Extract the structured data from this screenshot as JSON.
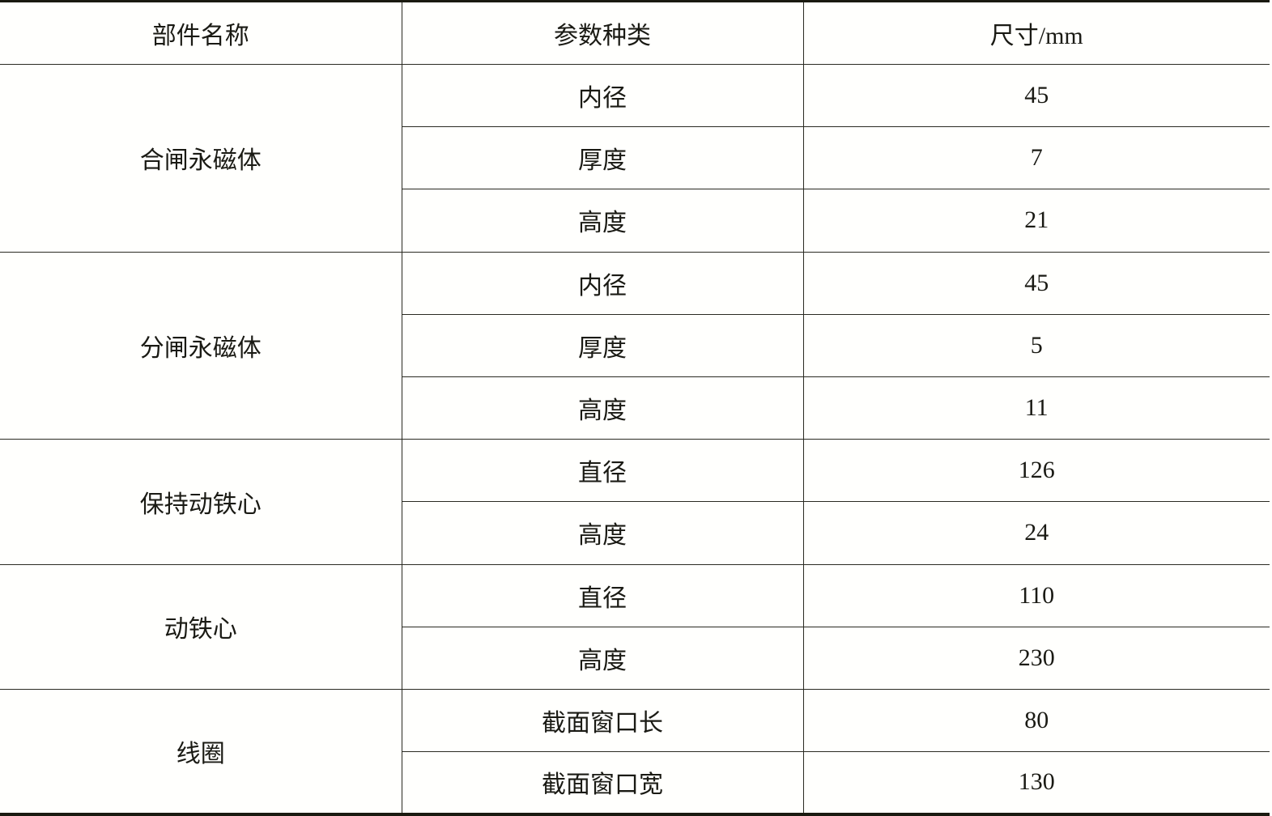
{
  "table": {
    "headers": [
      "部件名称",
      "参数种类",
      "尺寸/mm"
    ],
    "groups": [
      {
        "name": "合闸永磁体",
        "rows": [
          [
            "内径",
            "45"
          ],
          [
            "厚度",
            "7"
          ],
          [
            "高度",
            "21"
          ]
        ]
      },
      {
        "name": "分闸永磁体",
        "rows": [
          [
            "内径",
            "45"
          ],
          [
            "厚度",
            "5"
          ],
          [
            "高度",
            "11"
          ]
        ]
      },
      {
        "name": "保持动铁心",
        "rows": [
          [
            "直径",
            "126"
          ],
          [
            "高度",
            "24"
          ]
        ]
      },
      {
        "name": "动铁心",
        "rows": [
          [
            "直径",
            "110"
          ],
          [
            "高度",
            "230"
          ]
        ]
      },
      {
        "name": "线圈",
        "rows": [
          [
            "截面窗口长",
            "80"
          ],
          [
            "截面窗口宽",
            "130"
          ]
        ]
      }
    ]
  }
}
